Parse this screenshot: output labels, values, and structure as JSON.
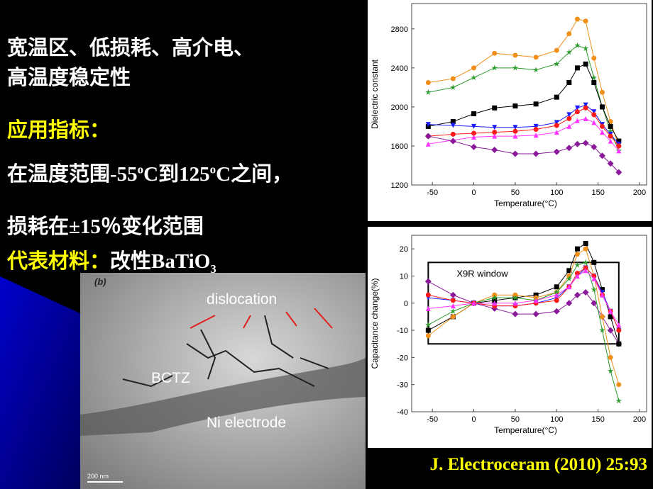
{
  "text": {
    "line1": "宽温区、低损耗、高介电、",
    "line2": "高温度稳定性",
    "spec_title": "应用指标：",
    "spec1": [
      "在温度范围-55",
      "o",
      "C到125",
      "o",
      "C之间，"
    ],
    "spec2": "损耗在±15％变化范围",
    "material_title": "代表材料：",
    "material": [
      "改性BaTiO",
      "3"
    ],
    "citation": "J. Electroceram (2010) 25:93"
  },
  "image": {
    "panel": "(b)",
    "dislocation": "dislocation",
    "bctz": "BCTZ",
    "ni": "Ni electrode",
    "scale": "200 nm"
  },
  "chart_data": [
    {
      "type": "line",
      "xlabel": "Temperature(°C)",
      "ylabel": "Dielectric constant",
      "x": [
        -55,
        -25,
        0,
        25,
        50,
        75,
        100,
        115,
        125,
        135,
        145,
        155,
        165,
        175
      ],
      "xlim": [
        -75,
        200
      ],
      "xticks": [
        -50,
        0,
        50,
        100,
        150,
        200
      ],
      "ylim": [
        1200,
        3060
      ],
      "yticks": [
        1200,
        1600,
        2000,
        2400,
        2800
      ],
      "series": [
        {
          "color": "#f0901a",
          "marker": "circle",
          "values": [
            2250,
            2290,
            2400,
            2550,
            2530,
            2510,
            2580,
            2750,
            2900,
            2880,
            2500,
            2150,
            1850,
            1600
          ]
        },
        {
          "color": "#2a9a2a",
          "marker": "star",
          "values": [
            2150,
            2200,
            2300,
            2400,
            2400,
            2380,
            2440,
            2560,
            2630,
            2600,
            2300,
            2000,
            1750,
            1550
          ]
        },
        {
          "color": "#000000",
          "marker": "square",
          "values": [
            1800,
            1850,
            1930,
            1990,
            2010,
            2030,
            2100,
            2250,
            2400,
            2440,
            2250,
            2000,
            1800,
            1650
          ]
        },
        {
          "color": "#1a1aff",
          "marker": "triangle-down",
          "values": [
            1820,
            1810,
            1800,
            1790,
            1790,
            1800,
            1840,
            1920,
            1990,
            2020,
            1950,
            1820,
            1720,
            1620
          ]
        },
        {
          "color": "#ff1a1a",
          "marker": "circle",
          "values": [
            1700,
            1720,
            1730,
            1740,
            1750,
            1770,
            1810,
            1880,
            1950,
            1990,
            1920,
            1800,
            1700,
            1600
          ]
        },
        {
          "color": "#ff33ff",
          "marker": "triangle-up",
          "values": [
            1620,
            1660,
            1690,
            1700,
            1700,
            1710,
            1740,
            1800,
            1860,
            1880,
            1840,
            1740,
            1650,
            1550
          ]
        },
        {
          "color": "#8a1a9a",
          "marker": "diamond",
          "values": [
            1700,
            1650,
            1590,
            1560,
            1520,
            1520,
            1540,
            1580,
            1620,
            1630,
            1590,
            1500,
            1420,
            1330
          ]
        }
      ]
    },
    {
      "type": "line",
      "xlabel": "Temperature(°C)",
      "ylabel": "Capacitance change(%)",
      "x": [
        -55,
        -25,
        0,
        25,
        50,
        75,
        100,
        115,
        125,
        135,
        145,
        155,
        165,
        175
      ],
      "xlim": [
        -75,
        200
      ],
      "xticks": [
        -50,
        0,
        50,
        100,
        150,
        200
      ],
      "ylim": [
        -40,
        25
      ],
      "yticks": [
        -40,
        -30,
        -20,
        -10,
        0,
        10,
        20
      ],
      "window": {
        "label": "X9R window",
        "xlim": [
          -55,
          175
        ],
        "ylim": [
          -15,
          15
        ]
      },
      "series": [
        {
          "color": "#8a1a9a",
          "marker": "diamond",
          "values": [
            8,
            3,
            0,
            -2,
            -4,
            -4,
            -3,
            0,
            3,
            4,
            0,
            -5,
            -10,
            -15
          ]
        },
        {
          "color": "#000000",
          "marker": "square",
          "values": [
            -10,
            -5,
            0,
            1,
            2,
            3,
            6,
            12,
            20,
            22,
            15,
            5,
            -5,
            -15
          ]
        },
        {
          "color": "#f0901a",
          "marker": "circle",
          "values": [
            -12,
            -5,
            0,
            3,
            3,
            2,
            4,
            10,
            18,
            20,
            10,
            -5,
            -20,
            -30
          ]
        },
        {
          "color": "#2a9a2a",
          "marker": "star",
          "values": [
            -8,
            -3,
            0,
            2,
            2,
            1,
            4,
            9,
            14,
            15,
            5,
            -10,
            -25,
            -36
          ]
        },
        {
          "color": "#1a1aff",
          "marker": "triangle-down",
          "values": [
            2,
            1,
            0,
            -1,
            -1,
            0,
            2,
            6,
            10,
            13,
            10,
            4,
            -3,
            -10
          ]
        },
        {
          "color": "#ff1a1a",
          "marker": "circle",
          "values": [
            3,
            1,
            0,
            -1,
            -1,
            0,
            1,
            6,
            11,
            13,
            10,
            3,
            -3,
            -10
          ]
        },
        {
          "color": "#ff33ff",
          "marker": "triangle-up",
          "values": [
            -2,
            -1,
            0,
            0,
            0,
            1,
            3,
            6,
            10,
            12,
            9,
            3,
            -3,
            -8
          ]
        }
      ]
    }
  ]
}
